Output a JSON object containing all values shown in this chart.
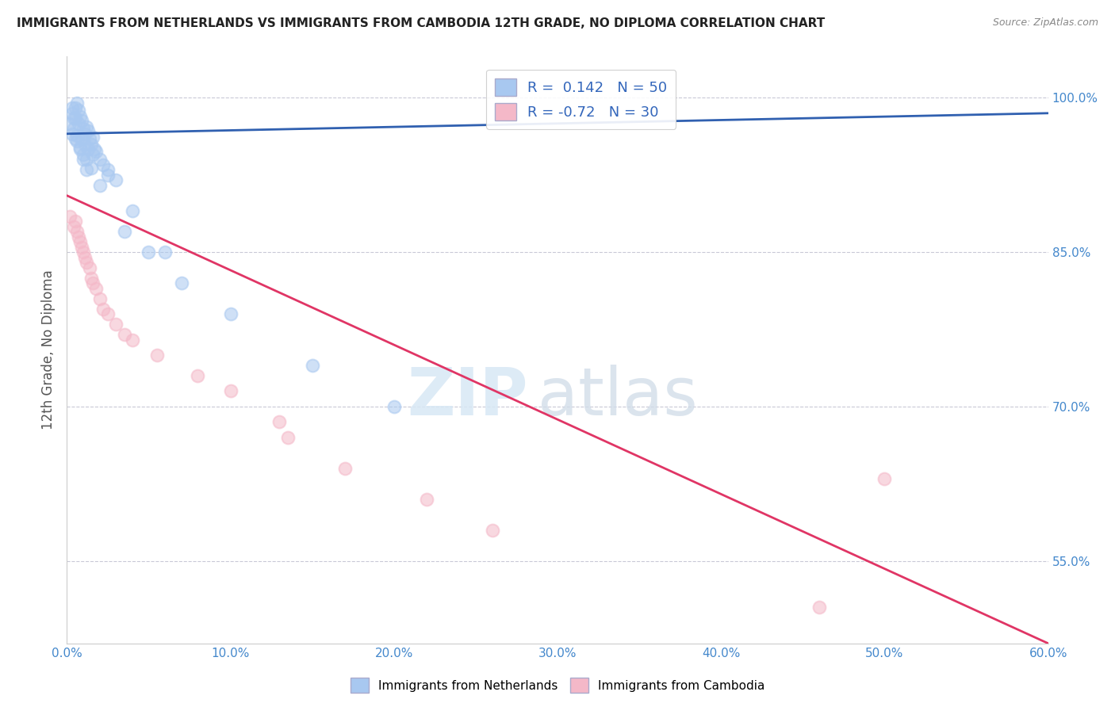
{
  "title": "IMMIGRANTS FROM NETHERLANDS VS IMMIGRANTS FROM CAMBODIA 12TH GRADE, NO DIPLOMA CORRELATION CHART",
  "source": "Source: ZipAtlas.com",
  "ylabel": "12th Grade, No Diploma",
  "legend_label1": "Immigrants from Netherlands",
  "legend_label2": "Immigrants from Cambodia",
  "R1": 0.142,
  "N1": 50,
  "R2": -0.72,
  "N2": 30,
  "xlim": [
    0.0,
    60.0
  ],
  "ylim": [
    47.0,
    104.0
  ],
  "ytick_vals": [
    55.0,
    70.0,
    85.0,
    100.0
  ],
  "xtick_vals": [
    0.0,
    10.0,
    20.0,
    30.0,
    40.0,
    50.0,
    60.0
  ],
  "color_blue": "#A8C8F0",
  "color_pink": "#F4B8C8",
  "line_color_blue": "#3060B0",
  "line_color_pink": "#E03565",
  "watermark_zip": "ZIP",
  "watermark_atlas": "atlas",
  "background_color": "#FFFFFF",
  "blue_scatter_x": [
    0.2,
    0.3,
    0.4,
    0.5,
    0.6,
    0.7,
    0.8,
    0.9,
    1.0,
    1.1,
    1.2,
    1.3,
    1.4,
    1.5,
    1.6,
    1.7,
    1.8,
    2.0,
    2.2,
    2.5,
    3.0,
    0.3,
    0.5,
    0.6,
    0.8,
    1.0,
    1.2,
    1.5,
    0.4,
    0.6,
    0.8,
    1.0,
    1.2,
    2.0,
    3.5,
    5.0,
    7.0,
    10.0,
    15.0,
    20.0,
    0.3,
    0.5,
    0.7,
    0.9,
    1.1,
    1.3,
    1.6,
    2.5,
    4.0,
    6.0
  ],
  "blue_scatter_y": [
    97.5,
    98.5,
    98.0,
    99.0,
    99.5,
    98.8,
    98.2,
    97.8,
    97.0,
    96.5,
    97.2,
    96.8,
    96.0,
    95.5,
    96.2,
    95.0,
    94.8,
    94.0,
    93.5,
    93.0,
    92.0,
    96.5,
    96.0,
    95.8,
    95.2,
    94.5,
    94.0,
    93.2,
    97.0,
    96.3,
    95.0,
    94.0,
    93.0,
    91.5,
    87.0,
    85.0,
    82.0,
    79.0,
    74.0,
    70.0,
    99.0,
    98.0,
    97.5,
    96.0,
    95.5,
    95.0,
    94.5,
    92.5,
    89.0,
    85.0
  ],
  "pink_scatter_x": [
    0.2,
    0.4,
    0.5,
    0.6,
    0.7,
    0.8,
    0.9,
    1.0,
    1.1,
    1.2,
    1.4,
    1.5,
    1.6,
    1.8,
    2.0,
    2.2,
    2.5,
    3.0,
    3.5,
    4.0,
    5.5,
    8.0,
    10.0,
    13.0,
    13.5,
    17.0,
    22.0,
    26.0,
    46.0,
    50.0
  ],
  "pink_scatter_y": [
    88.5,
    87.5,
    88.0,
    87.0,
    86.5,
    86.0,
    85.5,
    85.0,
    84.5,
    84.0,
    83.5,
    82.5,
    82.0,
    81.5,
    80.5,
    79.5,
    79.0,
    78.0,
    77.0,
    76.5,
    75.0,
    73.0,
    71.5,
    68.5,
    67.0,
    64.0,
    61.0,
    58.0,
    50.5,
    63.0
  ],
  "blue_size": 130,
  "pink_size": 130,
  "blue_line_x": [
    0.0,
    60.0
  ],
  "blue_line_y": [
    96.5,
    98.5
  ],
  "pink_line_x": [
    0.0,
    60.0
  ],
  "pink_line_y": [
    90.5,
    47.0
  ]
}
